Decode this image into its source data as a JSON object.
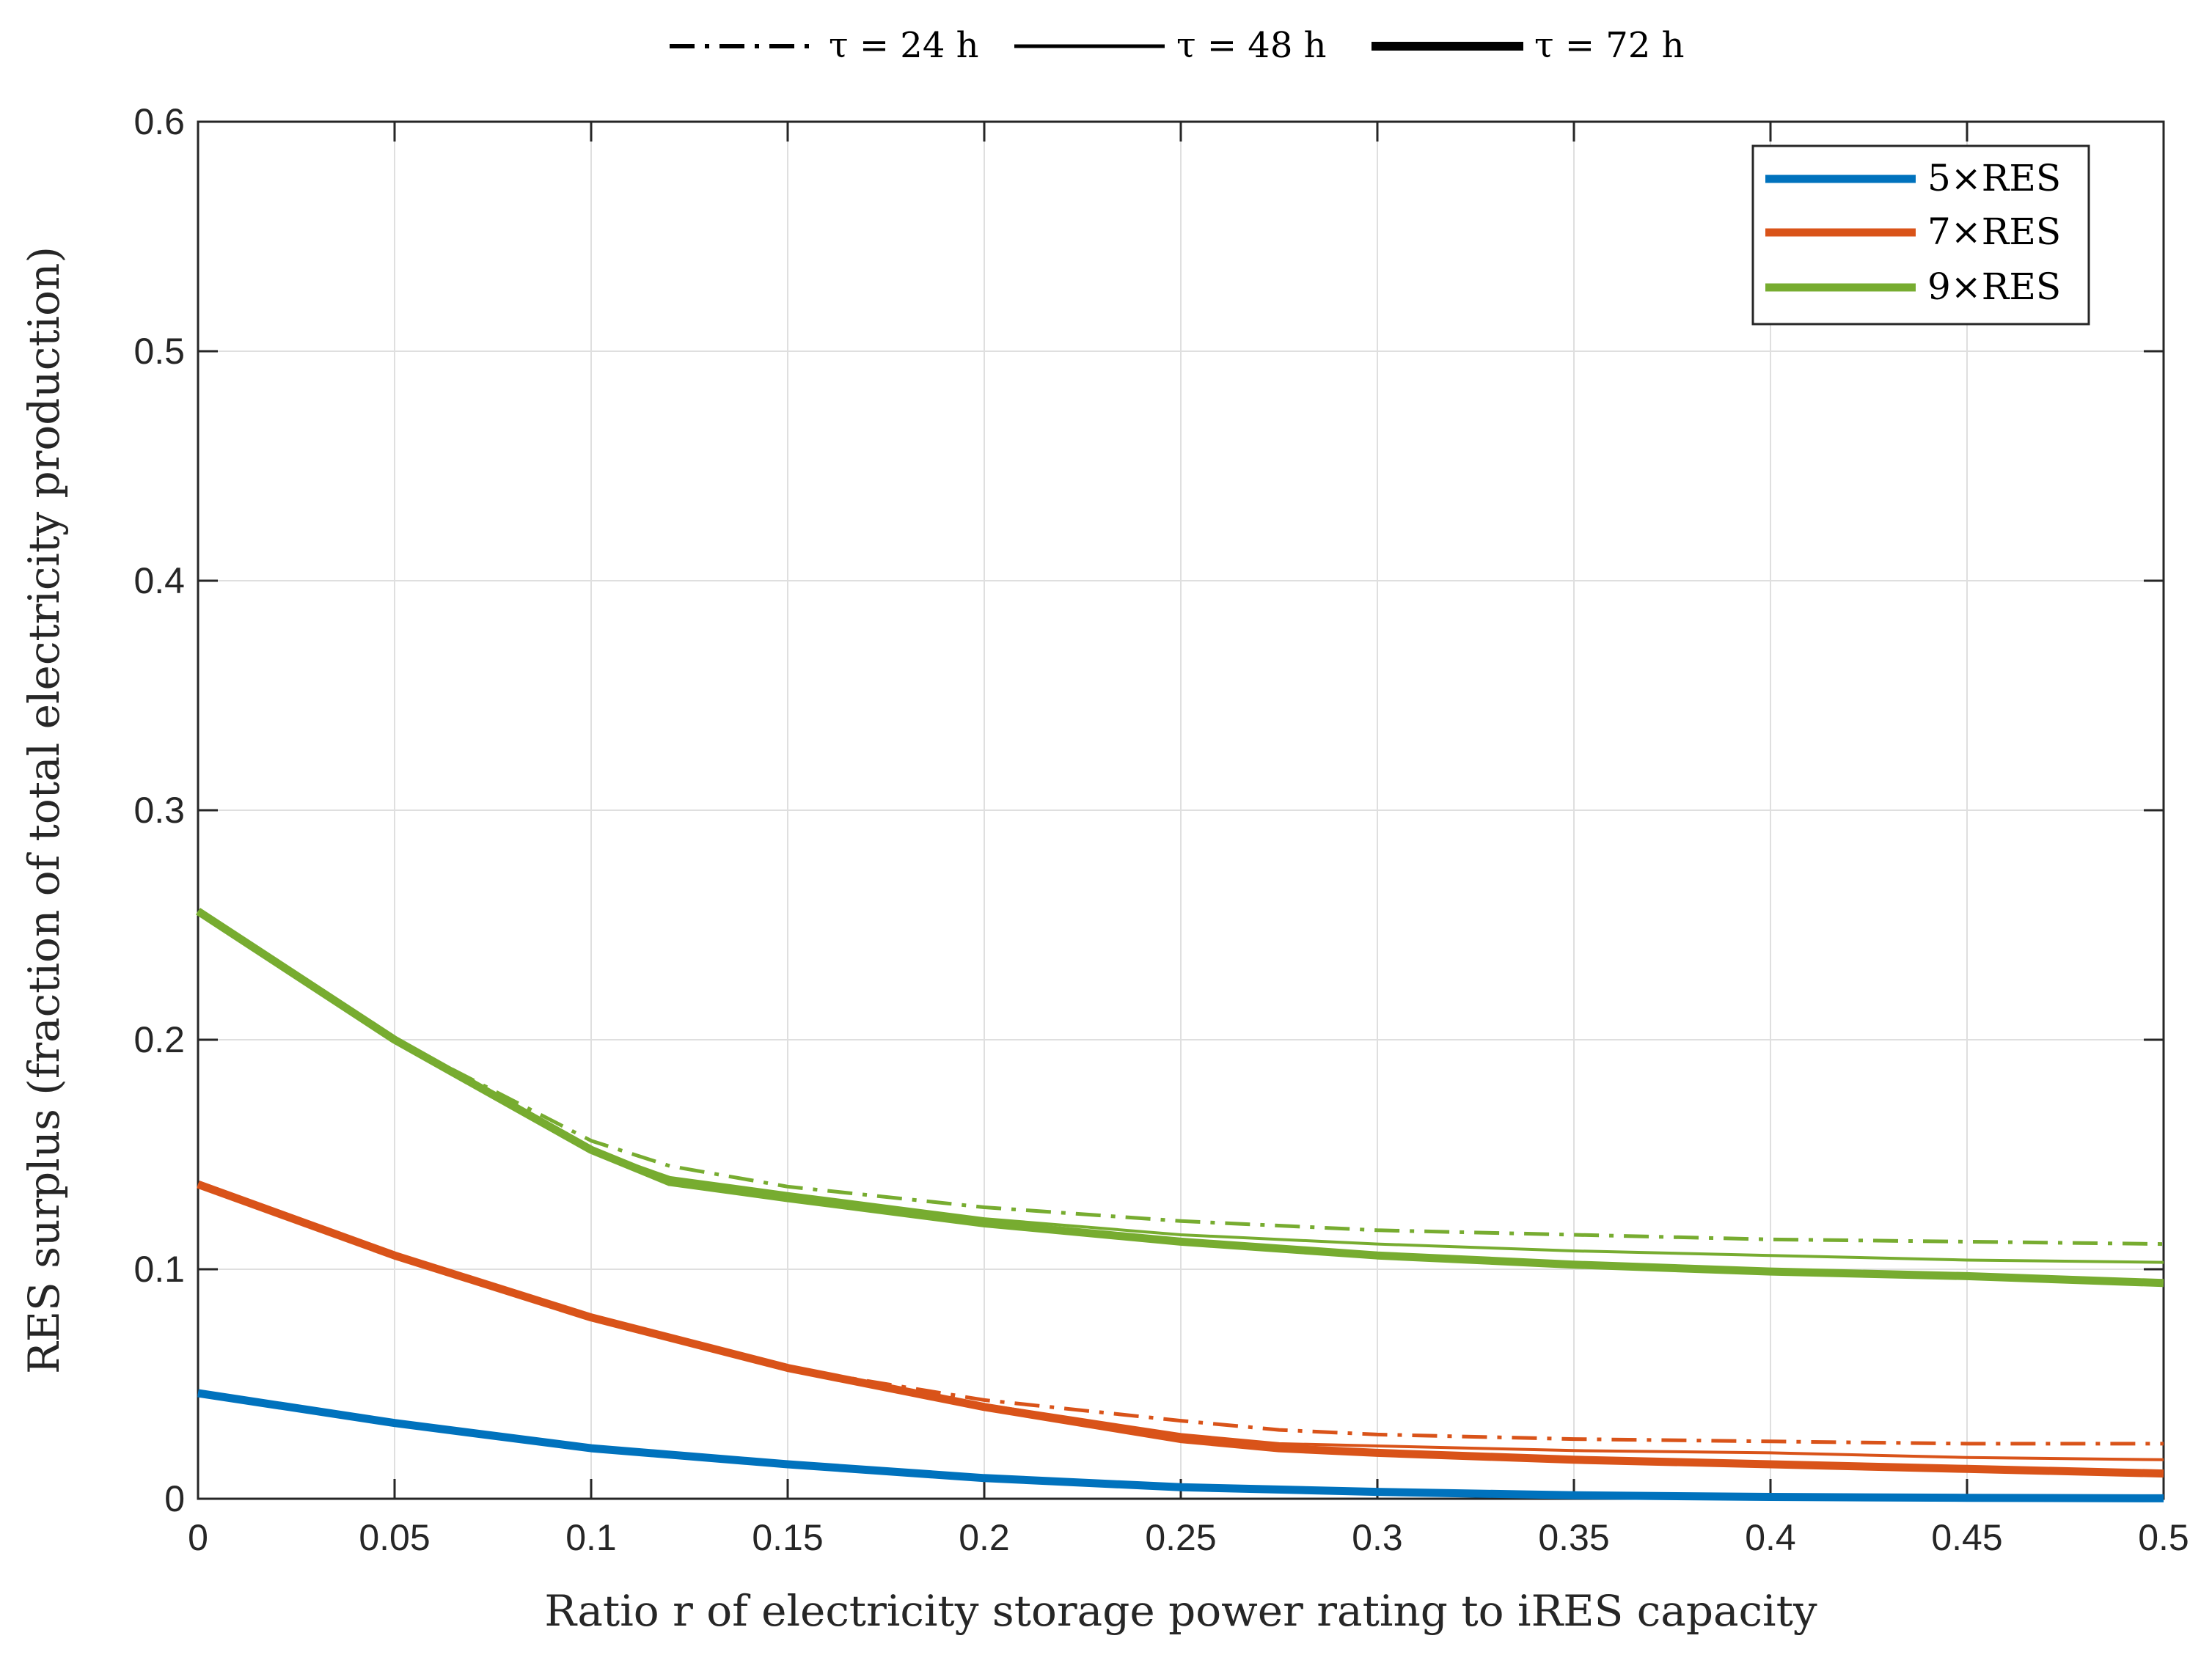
{
  "chart_data": {
    "type": "line",
    "title": "",
    "xlabel": "Ratio r of electricity storage power rating to iRES capacity",
    "ylabel": "RES surplus (fraction of total electricity production)",
    "xlim": [
      0,
      0.5
    ],
    "ylim": [
      0,
      0.6
    ],
    "xticks": [
      0,
      0.05,
      0.1,
      0.15,
      0.2,
      0.25,
      0.3,
      0.35,
      0.4,
      0.45,
      0.5
    ],
    "xtick_labels": [
      "0",
      "0.05",
      "0.1",
      "0.15",
      "0.2",
      "0.25",
      "0.3",
      "0.35",
      "0.4",
      "0.45",
      "0.5"
    ],
    "yticks": [
      0,
      0.1,
      0.2,
      0.3,
      0.4,
      0.5,
      0.6
    ],
    "ytick_labels": [
      "0",
      "0.1",
      "0.2",
      "0.3",
      "0.4",
      "0.5",
      "0.6"
    ],
    "grid": true,
    "legend_color": {
      "position": "top-right",
      "entries": [
        {
          "label": "5×RES",
          "color": "#0072BD"
        },
        {
          "label": "7×RES",
          "color": "#D95319"
        },
        {
          "label": "9×RES",
          "color": "#77AC30"
        }
      ]
    },
    "legend_style": {
      "position": "top-outside",
      "entries": [
        {
          "label": "τ = 24 h",
          "style": "dashdot"
        },
        {
          "label": "τ = 48 h",
          "style": "thin"
        },
        {
          "label": "τ = 72 h",
          "style": "thick"
        }
      ]
    },
    "series": [
      {
        "name": "5×RES",
        "color": "#0072BD",
        "style": "dashdot",
        "x": [
          0,
          0.05,
          0.1,
          0.15,
          0.2,
          0.25,
          0.3,
          0.35,
          0.4,
          0.45,
          0.5
        ],
        "y": [
          0.046,
          0.033,
          0.022,
          0.015,
          0.009,
          0.005,
          0.003,
          0.0015,
          0.0008,
          0.0004,
          0.0002
        ]
      },
      {
        "name": "5×RES",
        "color": "#0072BD",
        "style": "thin",
        "x": [
          0,
          0.05,
          0.1,
          0.15,
          0.2,
          0.25,
          0.3,
          0.35,
          0.4,
          0.45,
          0.5
        ],
        "y": [
          0.046,
          0.033,
          0.022,
          0.015,
          0.009,
          0.005,
          0.003,
          0.0015,
          0.0008,
          0.0004,
          0.0002
        ]
      },
      {
        "name": "5×RES",
        "color": "#0072BD",
        "style": "thick",
        "x": [
          0,
          0.05,
          0.1,
          0.15,
          0.2,
          0.25,
          0.3,
          0.35,
          0.4,
          0.45,
          0.5
        ],
        "y": [
          0.046,
          0.033,
          0.022,
          0.015,
          0.009,
          0.005,
          0.003,
          0.0015,
          0.0008,
          0.0004,
          0.0002
        ]
      },
      {
        "name": "7×RES",
        "color": "#D95319",
        "style": "dashdot",
        "x": [
          0,
          0.05,
          0.1,
          0.15,
          0.2,
          0.25,
          0.275,
          0.3,
          0.35,
          0.4,
          0.45,
          0.5
        ],
        "y": [
          0.137,
          0.106,
          0.079,
          0.057,
          0.043,
          0.034,
          0.03,
          0.028,
          0.026,
          0.025,
          0.024,
          0.024
        ]
      },
      {
        "name": "7×RES",
        "color": "#D95319",
        "style": "thin",
        "x": [
          0,
          0.05,
          0.1,
          0.15,
          0.2,
          0.25,
          0.275,
          0.3,
          0.35,
          0.4,
          0.45,
          0.5
        ],
        "y": [
          0.137,
          0.106,
          0.079,
          0.057,
          0.041,
          0.028,
          0.024,
          0.023,
          0.021,
          0.02,
          0.018,
          0.017
        ]
      },
      {
        "name": "7×RES",
        "color": "#D95319",
        "style": "thick",
        "x": [
          0,
          0.05,
          0.1,
          0.15,
          0.2,
          0.25,
          0.275,
          0.3,
          0.35,
          0.4,
          0.45,
          0.5
        ],
        "y": [
          0.137,
          0.106,
          0.079,
          0.057,
          0.04,
          0.026,
          0.022,
          0.02,
          0.017,
          0.015,
          0.013,
          0.011
        ]
      },
      {
        "name": "9×RES",
        "color": "#77AC30",
        "style": "dashdot",
        "x": [
          0,
          0.05,
          0.1,
          0.12,
          0.15,
          0.2,
          0.25,
          0.3,
          0.35,
          0.4,
          0.45,
          0.5
        ],
        "y": [
          0.256,
          0.2,
          0.156,
          0.145,
          0.136,
          0.127,
          0.121,
          0.117,
          0.115,
          0.113,
          0.112,
          0.111
        ]
      },
      {
        "name": "9×RES",
        "color": "#77AC30",
        "style": "thin",
        "x": [
          0,
          0.05,
          0.1,
          0.12,
          0.15,
          0.2,
          0.25,
          0.3,
          0.35,
          0.4,
          0.45,
          0.5
        ],
        "y": [
          0.256,
          0.2,
          0.152,
          0.14,
          0.133,
          0.122,
          0.115,
          0.111,
          0.108,
          0.106,
          0.104,
          0.103
        ]
      },
      {
        "name": "9×RES",
        "color": "#77AC30",
        "style": "thick",
        "x": [
          0,
          0.05,
          0.1,
          0.12,
          0.15,
          0.2,
          0.25,
          0.3,
          0.35,
          0.4,
          0.45,
          0.5
        ],
        "y": [
          0.256,
          0.2,
          0.152,
          0.138,
          0.131,
          0.12,
          0.112,
          0.106,
          0.102,
          0.099,
          0.097,
          0.094
        ]
      }
    ]
  }
}
